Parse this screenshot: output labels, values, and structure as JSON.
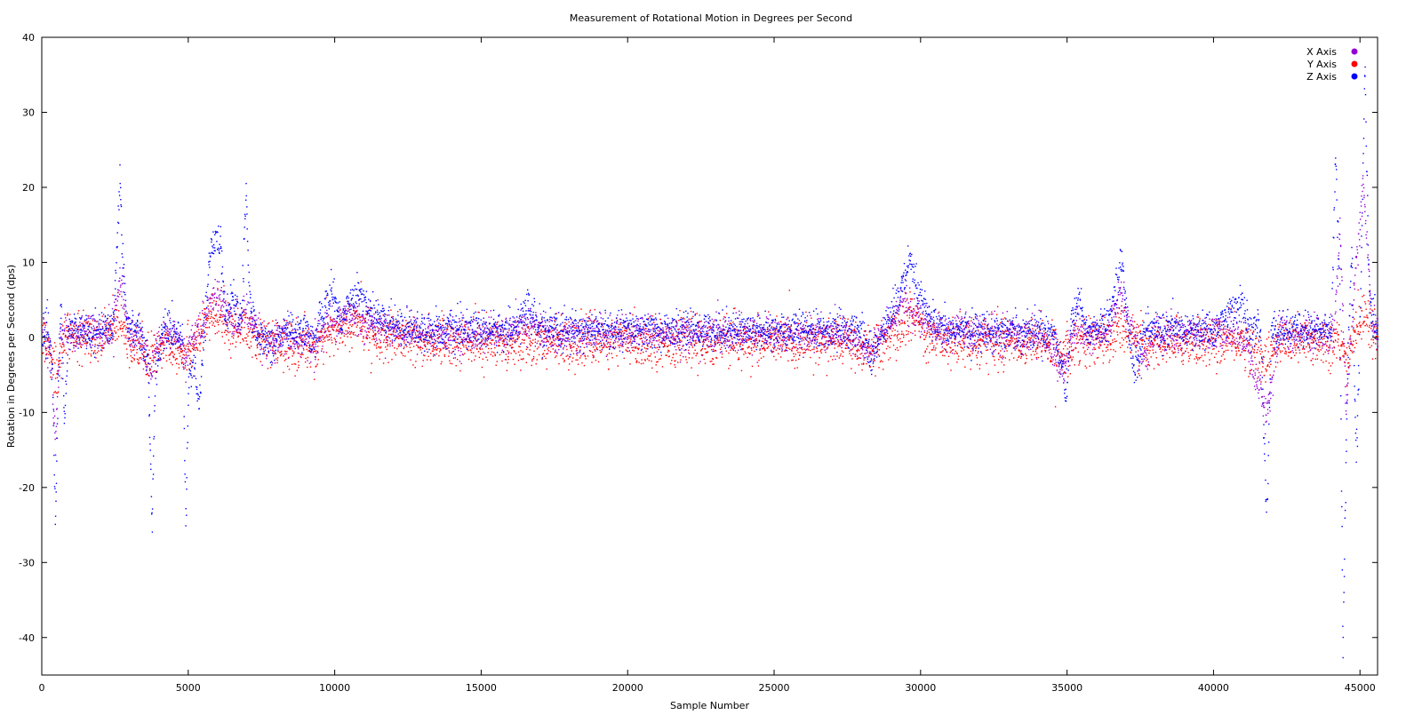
{
  "chart_data": {
    "type": "scatter",
    "title": "Measurement of Rotational Motion in Degrees per Second",
    "xlabel": "Sample Number",
    "ylabel": "Rotation in Degrees per Second (dps)",
    "xlim": [
      0,
      45600
    ],
    "ylim": [
      -45,
      40
    ],
    "xticks": [
      0,
      5000,
      10000,
      15000,
      20000,
      25000,
      30000,
      35000,
      40000,
      45000
    ],
    "yticks": [
      -40,
      -30,
      -20,
      -10,
      0,
      10,
      20,
      30,
      40
    ],
    "grid": false,
    "legend_position": "top-right",
    "colors": {
      "x_axis": "#9400d3",
      "y_axis": "#ff0000",
      "z_axis": "#0000ff"
    },
    "series": [
      {
        "name": "X Axis",
        "color": "#9400d3",
        "envelope": [
          [
            0,
            0.5
          ],
          [
            300,
            -2
          ],
          [
            450,
            -15
          ],
          [
            600,
            0.5
          ],
          [
            800,
            1
          ],
          [
            1200,
            0.5
          ],
          [
            1800,
            0.5
          ],
          [
            2400,
            1
          ],
          [
            2650,
            8
          ],
          [
            2900,
            1
          ],
          [
            3400,
            0
          ],
          [
            3700,
            -5
          ],
          [
            4000,
            0
          ],
          [
            4600,
            0
          ],
          [
            4900,
            -3
          ],
          [
            5100,
            0
          ],
          [
            5500,
            2
          ],
          [
            5900,
            6
          ],
          [
            6200,
            4
          ],
          [
            6600,
            1
          ],
          [
            6900,
            4
          ],
          [
            7200,
            1
          ],
          [
            7800,
            -1
          ],
          [
            8500,
            0
          ],
          [
            9200,
            -1
          ],
          [
            9800,
            2
          ],
          [
            10500,
            3
          ],
          [
            11200,
            2
          ],
          [
            12000,
            1
          ],
          [
            13000,
            0.5
          ],
          [
            14000,
            0.5
          ],
          [
            15000,
            0.5
          ],
          [
            16000,
            0.5
          ],
          [
            16600,
            2
          ],
          [
            17500,
            0
          ],
          [
            18500,
            0.5
          ],
          [
            20000,
            0.5
          ],
          [
            22000,
            0.5
          ],
          [
            24000,
            0.5
          ],
          [
            26000,
            0.5
          ],
          [
            27500,
            0.5
          ],
          [
            28200,
            -2
          ],
          [
            28800,
            1
          ],
          [
            29400,
            5
          ],
          [
            29800,
            3
          ],
          [
            30500,
            1
          ],
          [
            32000,
            0.5
          ],
          [
            34000,
            0.5
          ],
          [
            34900,
            -4
          ],
          [
            35300,
            2
          ],
          [
            35600,
            0.5
          ],
          [
            36300,
            0.5
          ],
          [
            36800,
            6
          ],
          [
            37200,
            1
          ],
          [
            37500,
            -3
          ],
          [
            38000,
            0.5
          ],
          [
            40000,
            0.5
          ],
          [
            41000,
            0.5
          ],
          [
            41800,
            -10
          ],
          [
            42200,
            0.5
          ],
          [
            43500,
            0.5
          ],
          [
            44100,
            0.5
          ],
          [
            44300,
            15
          ],
          [
            44500,
            -10
          ],
          [
            44800,
            8
          ],
          [
            45100,
            20
          ],
          [
            45400,
            1
          ],
          [
            45600,
            1
          ]
        ]
      },
      {
        "name": "Y Axis",
        "color": "#ff0000",
        "envelope": [
          [
            0,
            -0.5
          ],
          [
            300,
            -2
          ],
          [
            500,
            -5
          ],
          [
            700,
            0
          ],
          [
            1000,
            0.5
          ],
          [
            2000,
            -0.5
          ],
          [
            2650,
            3
          ],
          [
            3000,
            -0.5
          ],
          [
            3700,
            -3
          ],
          [
            4200,
            -0.5
          ],
          [
            4900,
            -2
          ],
          [
            5300,
            0
          ],
          [
            5800,
            3
          ],
          [
            6300,
            2
          ],
          [
            7000,
            1
          ],
          [
            7600,
            -1
          ],
          [
            8500,
            -1
          ],
          [
            9300,
            -1
          ],
          [
            10000,
            1
          ],
          [
            10800,
            2
          ],
          [
            11500,
            0
          ],
          [
            13000,
            -0.5
          ],
          [
            15000,
            -0.5
          ],
          [
            17000,
            -0.5
          ],
          [
            19000,
            -0.5
          ],
          [
            21000,
            -0.5
          ],
          [
            23000,
            -0.5
          ],
          [
            25000,
            -0.5
          ],
          [
            27500,
            -0.5
          ],
          [
            28200,
            -2
          ],
          [
            29000,
            0
          ],
          [
            29700,
            3
          ],
          [
            30300,
            0
          ],
          [
            32000,
            -0.5
          ],
          [
            34000,
            -0.5
          ],
          [
            34900,
            -2
          ],
          [
            35300,
            0
          ],
          [
            35600,
            -0.5
          ],
          [
            36300,
            -0.5
          ],
          [
            36800,
            2
          ],
          [
            37400,
            -1
          ],
          [
            38000,
            -0.5
          ],
          [
            40000,
            -0.5
          ],
          [
            41000,
            -0.5
          ],
          [
            41800,
            -3
          ],
          [
            42200,
            -0.5
          ],
          [
            43500,
            -0.5
          ],
          [
            44200,
            -0.5
          ],
          [
            44500,
            -3
          ],
          [
            44900,
            2
          ],
          [
            45200,
            3
          ],
          [
            45600,
            -0.5
          ]
        ]
      },
      {
        "name": "Z Axis",
        "color": "#0000ff",
        "envelope": [
          [
            0,
            0.5
          ],
          [
            200,
            0.5
          ],
          [
            350,
            -5
          ],
          [
            450,
            -25
          ],
          [
            550,
            -5
          ],
          [
            650,
            5
          ],
          [
            750,
            -12
          ],
          [
            900,
            1
          ],
          [
            1200,
            1
          ],
          [
            1600,
            1
          ],
          [
            2000,
            1
          ],
          [
            2400,
            1
          ],
          [
            2550,
            12
          ],
          [
            2650,
            22
          ],
          [
            2750,
            10
          ],
          [
            2900,
            2
          ],
          [
            3300,
            1
          ],
          [
            3600,
            -3
          ],
          [
            3750,
            -25
          ],
          [
            3850,
            -5
          ],
          [
            4100,
            1
          ],
          [
            4500,
            1
          ],
          [
            4800,
            0
          ],
          [
            4900,
            -25
          ],
          [
            5000,
            -5
          ],
          [
            5200,
            -3
          ],
          [
            5350,
            -10
          ],
          [
            5500,
            0
          ],
          [
            5700,
            10
          ],
          [
            5950,
            14.5
          ],
          [
            6100,
            12
          ],
          [
            6250,
            2
          ],
          [
            6500,
            6
          ],
          [
            6800,
            2
          ],
          [
            6950,
            20
          ],
          [
            7050,
            6
          ],
          [
            7300,
            1
          ],
          [
            7800,
            -1
          ],
          [
            8300,
            1
          ],
          [
            8800,
            1
          ],
          [
            9300,
            0
          ],
          [
            9700,
            5
          ],
          [
            9900,
            6
          ],
          [
            10200,
            2
          ],
          [
            10600,
            6
          ],
          [
            10900,
            6
          ],
          [
            11200,
            3
          ],
          [
            12000,
            2
          ],
          [
            13000,
            1
          ],
          [
            14000,
            1
          ],
          [
            15000,
            1
          ],
          [
            16000,
            1
          ],
          [
            16600,
            4
          ],
          [
            17000,
            1
          ],
          [
            18000,
            1
          ],
          [
            19000,
            1
          ],
          [
            20000,
            1
          ],
          [
            21000,
            1
          ],
          [
            22000,
            1
          ],
          [
            23000,
            1
          ],
          [
            24000,
            1
          ],
          [
            25000,
            1
          ],
          [
            26000,
            1
          ],
          [
            27000,
            1
          ],
          [
            28000,
            1
          ],
          [
            28300,
            -3
          ],
          [
            28700,
            1
          ],
          [
            29200,
            5
          ],
          [
            29600,
            10
          ],
          [
            29900,
            6
          ],
          [
            30200,
            3
          ],
          [
            30600,
            1
          ],
          [
            31500,
            1
          ],
          [
            32500,
            1
          ],
          [
            33500,
            1
          ],
          [
            34500,
            1
          ],
          [
            34800,
            -3
          ],
          [
            34950,
            -8
          ],
          [
            35100,
            1
          ],
          [
            35400,
            6
          ],
          [
            35600,
            1
          ],
          [
            36000,
            1
          ],
          [
            36400,
            2
          ],
          [
            36700,
            8
          ],
          [
            36850,
            10
          ],
          [
            37000,
            4
          ],
          [
            37300,
            -5
          ],
          [
            37600,
            1
          ],
          [
            38000,
            1
          ],
          [
            39000,
            1
          ],
          [
            40000,
            1
          ],
          [
            40900,
            5
          ],
          [
            41200,
            1
          ],
          [
            41600,
            1
          ],
          [
            41800,
            -25
          ],
          [
            41950,
            1
          ],
          [
            42200,
            1
          ],
          [
            43000,
            1
          ],
          [
            44000,
            1
          ],
          [
            44150,
            25
          ],
          [
            44300,
            5
          ],
          [
            44400,
            -42
          ],
          [
            44550,
            -5
          ],
          [
            44700,
            12
          ],
          [
            44850,
            -17
          ],
          [
            45000,
            5
          ],
          [
            45150,
            36
          ],
          [
            45300,
            5
          ],
          [
            45500,
            1
          ],
          [
            45600,
            1
          ]
        ]
      }
    ]
  }
}
